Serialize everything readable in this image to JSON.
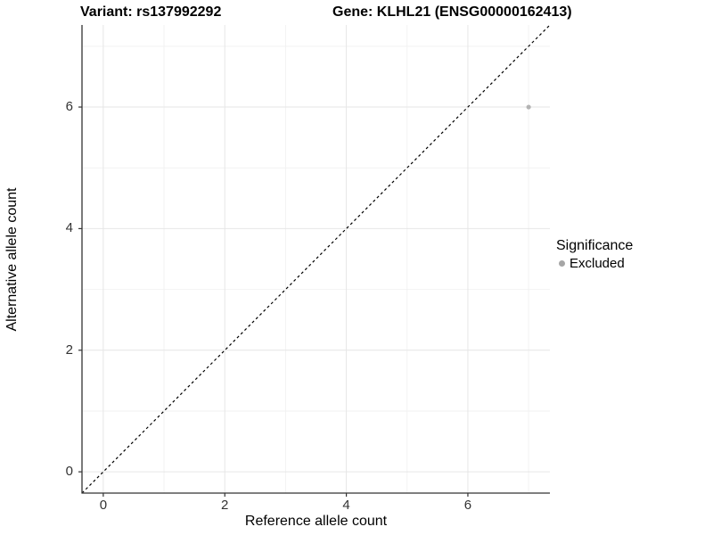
{
  "chart_data": {
    "type": "scatter",
    "titles": {
      "left": "Variant: rs137992292",
      "right": "Gene: KLHL21 (ENSG00000162413)"
    },
    "xlabel": "Reference allele count",
    "ylabel": "Alternative allele count",
    "xlim": [
      -0.35,
      7.35
    ],
    "ylim": [
      -0.35,
      7.35
    ],
    "x_ticks": [
      0,
      2,
      4,
      6
    ],
    "y_ticks": [
      0,
      2,
      4,
      6
    ],
    "x_minor_ticks": [
      1,
      3,
      5,
      7
    ],
    "y_minor_ticks": [
      1,
      3,
      5,
      7
    ],
    "series": [
      {
        "name": "Excluded",
        "color": "#b3b3b3",
        "point_radius": 2.6,
        "points": [
          {
            "x": 7,
            "y": 6
          }
        ]
      }
    ],
    "reference_line": {
      "kind": "identity",
      "style": "dashed",
      "color": "#000000",
      "from": -0.35,
      "to": 7.35
    },
    "legend": {
      "title": "Significance",
      "position": "right",
      "items": [
        {
          "label": "Excluded",
          "color": "#a6a6a6"
        }
      ]
    },
    "grid": {
      "on": true,
      "major_color": "#e6e6e6",
      "minor_color": "#f2f2f2"
    },
    "axis_color": "#333333"
  }
}
